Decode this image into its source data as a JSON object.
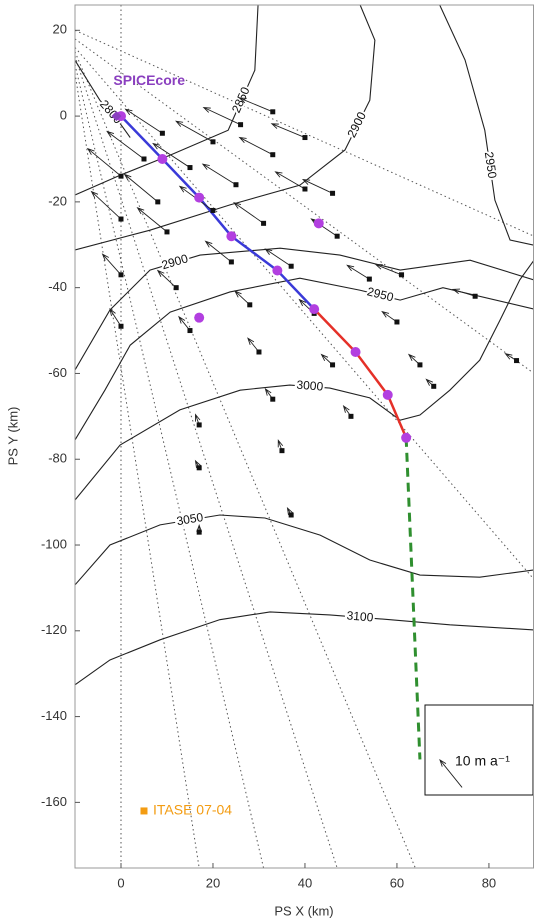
{
  "chart_data": {
    "type": "vector",
    "x_label": "PS X (km)",
    "y_label": "PS Y (km)",
    "xlim": [
      -10,
      89.8
    ],
    "ylim": [
      -175.3,
      25.9
    ],
    "xticks": [
      0,
      20,
      40,
      60,
      80
    ],
    "yticks": [
      20,
      0,
      -20,
      -40,
      -60,
      -80,
      -100,
      -120,
      -140,
      -160
    ],
    "contours": [
      {
        "level": 2800,
        "x": [
          -10,
          -4.6,
          0,
          2
        ],
        "y": [
          13,
          3.7,
          -2,
          -5
        ]
      },
      {
        "level": 2850,
        "x": [
          -10,
          -0.2,
          10.7,
          23.3,
          29.1,
          29.8
        ],
        "y": [
          -18.4,
          -13.8,
          -9.1,
          -3.3,
          10.7,
          25.9
        ]
      },
      {
        "level": 2900,
        "x": [
          -10,
          6.3,
          23.7,
          38.9,
          48.7,
          54.1,
          55.2,
          52
        ],
        "y": [
          -31.2,
          -26.6,
          -20.7,
          -16.1,
          -7.9,
          3.7,
          17.7,
          25.9
        ]
      },
      {
        "level": 2950,
        "x": [
          69.3,
          74.8,
          79.1,
          81.3,
          84.6,
          89.8
        ],
        "y": [
          25.9,
          13.1,
          -3.3,
          -19.6,
          -28.9,
          -30.1
        ]
      },
      {
        "level": 2900,
        "x": [
          -10,
          -2.4,
          6.3,
          17.2,
          34.6,
          47.6,
          60.7,
          75.9,
          89.8
        ],
        "y": [
          -59.2,
          -45.2,
          -35.9,
          -32.4,
          -30.8,
          -32.4,
          -35.9,
          -33.6,
          -38.2
        ]
      },
      {
        "level": 2950,
        "x": [
          -10,
          -3.5,
          2,
          10.7,
          23.7,
          38.9,
          52,
          60.7,
          70,
          89.8
        ],
        "y": [
          -75.5,
          -63.9,
          -53.4,
          -45.7,
          -41,
          -37.8,
          -40.6,
          -42.9,
          -40,
          -45
        ]
      },
      {
        "level": 3000,
        "x": [
          -10,
          -0.2,
          12.8,
          25.9,
          36.7,
          45.4,
          54.1,
          60.7,
          65,
          71.5,
          78,
          82.4,
          86.7,
          89.8
        ],
        "y": [
          -89.5,
          -76.7,
          -68.5,
          -63.9,
          -62.7,
          -63.4,
          -65.7,
          -70.9,
          -69.7,
          -63.9,
          -56.9,
          -47.6,
          -38.2,
          -33.6
        ]
      },
      {
        "level": 3050,
        "x": [
          -10,
          -2.4,
          8.5,
          21.5,
          31.3,
          43.3,
          54.1,
          65,
          78,
          89.8
        ],
        "y": [
          -109.3,
          -100,
          -95.3,
          -93,
          -93.7,
          -97.7,
          -103.5,
          -107,
          -107.5,
          -105.8
        ]
      },
      {
        "level": 3100,
        "x": [
          -10,
          -2.4,
          8.5,
          21.5,
          32.4,
          45.4,
          58.5,
          71.5,
          89.8
        ],
        "y": [
          -132.6,
          -126.8,
          -122.1,
          -117.4,
          -115.6,
          -116.3,
          -117.4,
          -118.6,
          -119.8
        ]
      }
    ],
    "flowlines": [
      {
        "x": [
          0,
          0
        ],
        "y": [
          25.9,
          -175.3
        ]
      },
      {
        "x": [
          -10,
          17
        ],
        "y": [
          10,
          -175.3
        ]
      },
      {
        "x": [
          -10,
          31
        ],
        "y": [
          12,
          -175.3
        ]
      },
      {
        "x": [
          -10,
          47
        ],
        "y": [
          14,
          -175.3
        ]
      },
      {
        "x": [
          -10,
          64
        ],
        "y": [
          15,
          -175.3
        ]
      },
      {
        "x": [
          -10,
          89.8
        ],
        "y": [
          16,
          -108
        ]
      },
      {
        "x": [
          -10,
          89.8
        ],
        "y": [
          18,
          -60
        ]
      },
      {
        "x": [
          -10,
          89.8
        ],
        "y": [
          20,
          -28
        ]
      }
    ],
    "vectors": {
      "x": [
        0,
        0,
        0,
        0,
        5,
        8,
        10,
        12,
        15,
        9,
        15,
        20,
        24,
        28,
        30,
        33,
        35,
        37,
        20,
        25,
        31,
        37,
        42,
        46,
        50,
        26,
        33,
        40,
        47,
        54,
        60,
        65,
        68,
        33,
        46,
        61,
        77,
        86,
        17,
        17,
        17,
        40
      ],
      "y": [
        -14,
        -24,
        -37,
        -49,
        -10,
        -20,
        -27,
        -40,
        -50,
        -4,
        -12,
        -22,
        -34,
        -44,
        -55,
        -66,
        -78,
        -93,
        -6,
        -16,
        -25,
        -35,
        -46,
        -58,
        -70,
        -2,
        -9,
        -17,
        -28,
        -38,
        -48,
        -58,
        -63,
        1,
        -18,
        -37,
        -42,
        -57,
        -72,
        -82,
        -97,
        -5
      ],
      "u": [
        -9,
        -8,
        -5,
        -3,
        -10,
        -9,
        -8,
        -5,
        -3,
        -10,
        -10,
        -9,
        -7,
        -4,
        -3,
        -2,
        -1,
        -1,
        -10,
        -9,
        -8,
        -7,
        -4,
        -3,
        -2,
        -10,
        -9,
        -8,
        -7,
        -6,
        -4,
        -3,
        -2,
        -9,
        -8,
        -7,
        -6,
        -3,
        -1,
        -1,
        0,
        -9
      ],
      "v": [
        8,
        8,
        6,
        5,
        8,
        8,
        7,
        5,
        4,
        7,
        7,
        7,
        6,
        4,
        4,
        3,
        3,
        2,
        6,
        6,
        6,
        5,
        4,
        3,
        3,
        5,
        5,
        5,
        5,
        4,
        3,
        3,
        2,
        4,
        4,
        3,
        2,
        2,
        3,
        2,
        2,
        4
      ]
    },
    "vector_legend": {
      "label": "10 m a⁻¹",
      "value": 10
    },
    "positions": {
      "color": "#b23fe0",
      "x": [
        0,
        9,
        17,
        24,
        34,
        42,
        51,
        58,
        62,
        43,
        17
      ],
      "y": [
        0,
        -10,
        -19,
        -28,
        -36,
        -45,
        -55,
        -65,
        -75,
        -25,
        -47
      ]
    },
    "paths": [
      {
        "color": "#3a3ad8",
        "x": [
          0,
          9,
          17,
          24,
          34,
          42
        ],
        "y": [
          0,
          -10,
          -19,
          -28,
          -36,
          -45
        ]
      },
      {
        "color": "#e53028",
        "x": [
          42,
          51,
          58,
          62
        ],
        "y": [
          -45,
          -55,
          -65,
          -75
        ]
      },
      {
        "color": "#2f8f2f",
        "x": [
          62,
          65
        ],
        "y": [
          -75,
          -150
        ],
        "dashed": true
      }
    ],
    "sites": [
      {
        "name": "SPICEcore",
        "color": "#8a3fbf",
        "x": [
          -1
        ],
        "y": [
          0
        ]
      },
      {
        "name": "ITASE 07-04",
        "color": "#f39c12",
        "x": [
          5
        ],
        "y": [
          -162
        ]
      }
    ]
  }
}
